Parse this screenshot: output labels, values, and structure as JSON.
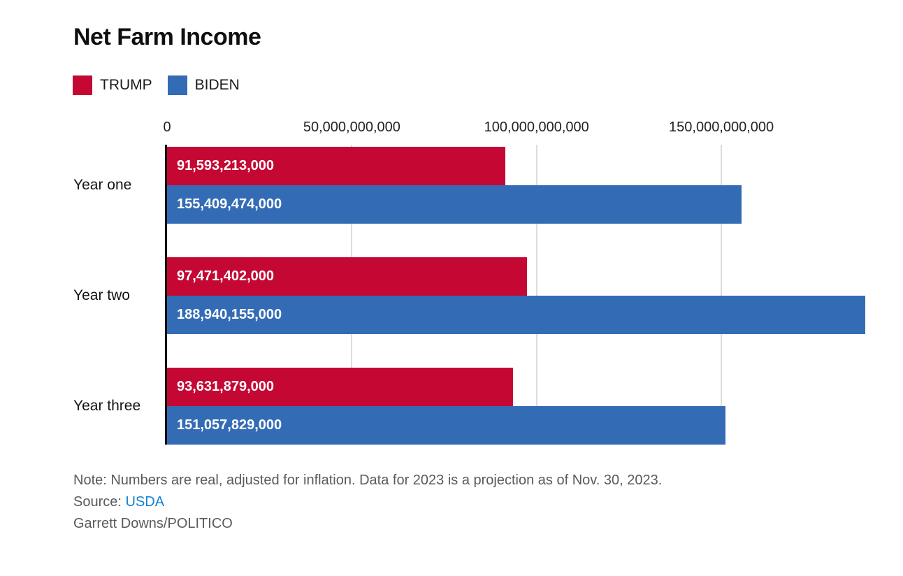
{
  "title": "Net Farm Income",
  "legend": [
    {
      "label": "TRUMP",
      "color": "#c40733"
    },
    {
      "label": "BIDEN",
      "color": "#336cb5"
    }
  ],
  "chart_data": {
    "type": "bar",
    "orientation": "horizontal",
    "title": "Net Farm Income",
    "categories": [
      "Year one",
      "Year two",
      "Year three"
    ],
    "series": [
      {
        "name": "TRUMP",
        "color": "#c40733",
        "values": [
          91593213000,
          97471402000,
          93631879000
        ],
        "value_labels": [
          "91,593,213,000",
          "97,471,402,000",
          "93,631,879,000"
        ]
      },
      {
        "name": "BIDEN",
        "color": "#336cb5",
        "values": [
          155409474000,
          188940155000,
          151057829000
        ],
        "value_labels": [
          "155,409,474,000",
          "188,940,155,000",
          "151,057,829,000"
        ]
      }
    ],
    "xlim": [
      0,
      188940155000
    ],
    "x_ticks": [
      {
        "value": 0,
        "label": "0"
      },
      {
        "value": 50000000000,
        "label": "50,000,000,000"
      },
      {
        "value": 100000000000,
        "label": "100,000,000,000"
      },
      {
        "value": 150000000000,
        "label": "150,000,000,000"
      }
    ],
    "grid": "vertical-gridlines-on",
    "legend_position": "top-left",
    "colors": {
      "gridline": "#dcdcdc",
      "axis_line": "#0a0a0a",
      "bar_label_text": "#ffffff"
    }
  },
  "footer": {
    "note": "Note: Numbers are real, adjusted for inflation. Data for 2023 is a projection as of Nov. 30, 2023.",
    "source_label": "Source:",
    "source_link": "USDA",
    "credit": "Garrett Downs/POLITICO"
  }
}
